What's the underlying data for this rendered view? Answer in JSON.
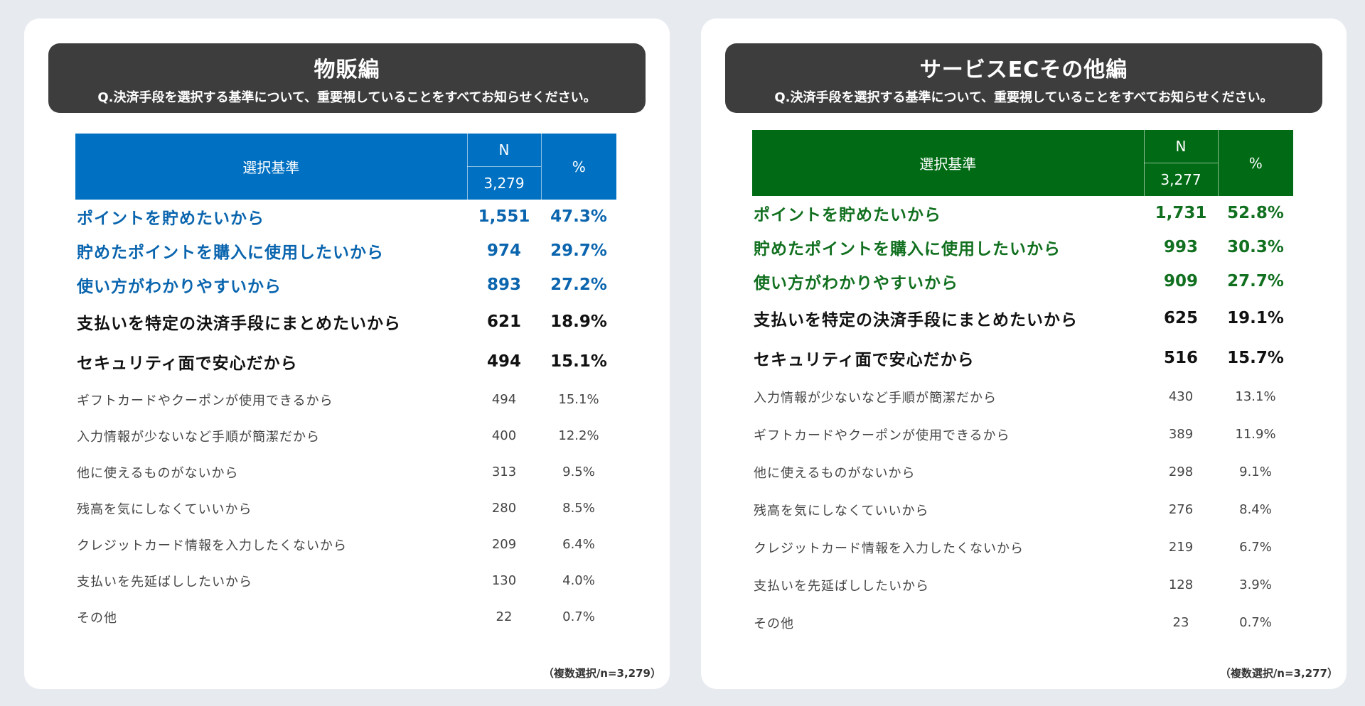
{
  "chart_data": [
    {
      "type": "table",
      "title": "物販編",
      "question": "Q.決済手段を選択する基準について、重要視していることをすべてお知らせください。",
      "columns": {
        "criteria": "選択基準",
        "n": "N",
        "n_total": "3,279",
        "pct": "%"
      },
      "rows": [
        {
          "label": "ポイントを貯めたいから",
          "n": "1,551",
          "pct": "47.3%"
        },
        {
          "label": "貯めたポイントを購入に使用したいから",
          "n": "974",
          "pct": "29.7%"
        },
        {
          "label": "使い方がわかりやすいから",
          "n": "893",
          "pct": "27.2%"
        },
        {
          "label": "支払いを特定の決済手段にまとめたいから",
          "n": "621",
          "pct": "18.9%"
        },
        {
          "label": "セキュリティ面で安心だから",
          "n": "494",
          "pct": "15.1%"
        },
        {
          "label": "ギフトカードやクーポンが使用できるから",
          "n": "494",
          "pct": "15.1%"
        },
        {
          "label": "入力情報が少ないなど手順が簡潔だから",
          "n": "400",
          "pct": "12.2%"
        },
        {
          "label": "他に使えるものがないから",
          "n": "313",
          "pct": "9.5%"
        },
        {
          "label": "残高を気にしなくていいから",
          "n": "280",
          "pct": "8.5%"
        },
        {
          "label": "クレジットカード情報を入力したくないから",
          "n": "209",
          "pct": "6.4%"
        },
        {
          "label": "支払いを先延ばししたいから",
          "n": "130",
          "pct": "4.0%"
        },
        {
          "label": "その他",
          "n": "22",
          "pct": "0.7%"
        }
      ],
      "footnote": "（複数選択/n=3,279）",
      "accent": "#0070c2"
    },
    {
      "type": "table",
      "title": "サービスECその他編",
      "question": "Q.決済手段を選択する基準について、重要視していることをすべてお知らせください。",
      "columns": {
        "criteria": "選択基準",
        "n": "N",
        "n_total": "3,277",
        "pct": "%"
      },
      "rows": [
        {
          "label": "ポイントを貯めたいから",
          "n": "1,731",
          "pct": "52.8%"
        },
        {
          "label": "貯めたポイントを購入に使用したいから",
          "n": "993",
          "pct": "30.3%"
        },
        {
          "label": "使い方がわかりやすいから",
          "n": "909",
          "pct": "27.7%"
        },
        {
          "label": "支払いを特定の決済手段にまとめたいから",
          "n": "625",
          "pct": "19.1%"
        },
        {
          "label": "セキュリティ面で安心だから",
          "n": "516",
          "pct": "15.7%"
        },
        {
          "label": "入力情報が少ないなど手順が簡潔だから",
          "n": "430",
          "pct": "13.1%"
        },
        {
          "label": "ギフトカードやクーポンが使用できるから",
          "n": "389",
          "pct": "11.9%"
        },
        {
          "label": "他に使えるものがないから",
          "n": "298",
          "pct": "9.1%"
        },
        {
          "label": "残高を気にしなくていいから",
          "n": "276",
          "pct": "8.4%"
        },
        {
          "label": "クレジットカード情報を入力したくないから",
          "n": "219",
          "pct": "6.7%"
        },
        {
          "label": "支払いを先延ばししたいから",
          "n": "128",
          "pct": "3.9%"
        },
        {
          "label": "その他",
          "n": "23",
          "pct": "0.7%"
        }
      ],
      "footnote": "（複数選択/n=3,277）",
      "accent": "#006b14"
    }
  ]
}
